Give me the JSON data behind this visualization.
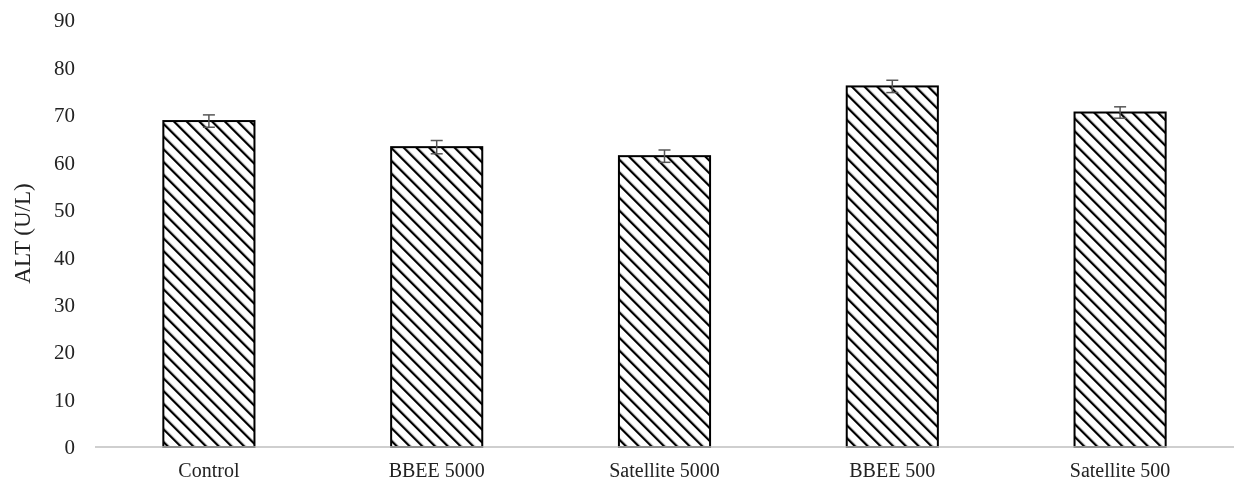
{
  "chart_data": {
    "type": "bar",
    "ylabel": "ALT (U/L)",
    "categories": [
      "Control",
      "BBEE 5000",
      "Satellite 5000",
      "BBEE 500",
      "Satellite 500"
    ],
    "values": [
      68.7,
      63.2,
      61.3,
      76,
      70.5
    ],
    "errors": [
      1.3,
      1.4,
      1.3,
      1.3,
      1.2
    ],
    "color": "#000000",
    "ylim": [
      0,
      90
    ],
    "yticks": [
      0,
      10,
      20,
      30,
      40,
      50,
      60,
      70,
      80,
      90
    ],
    "grid": false
  }
}
